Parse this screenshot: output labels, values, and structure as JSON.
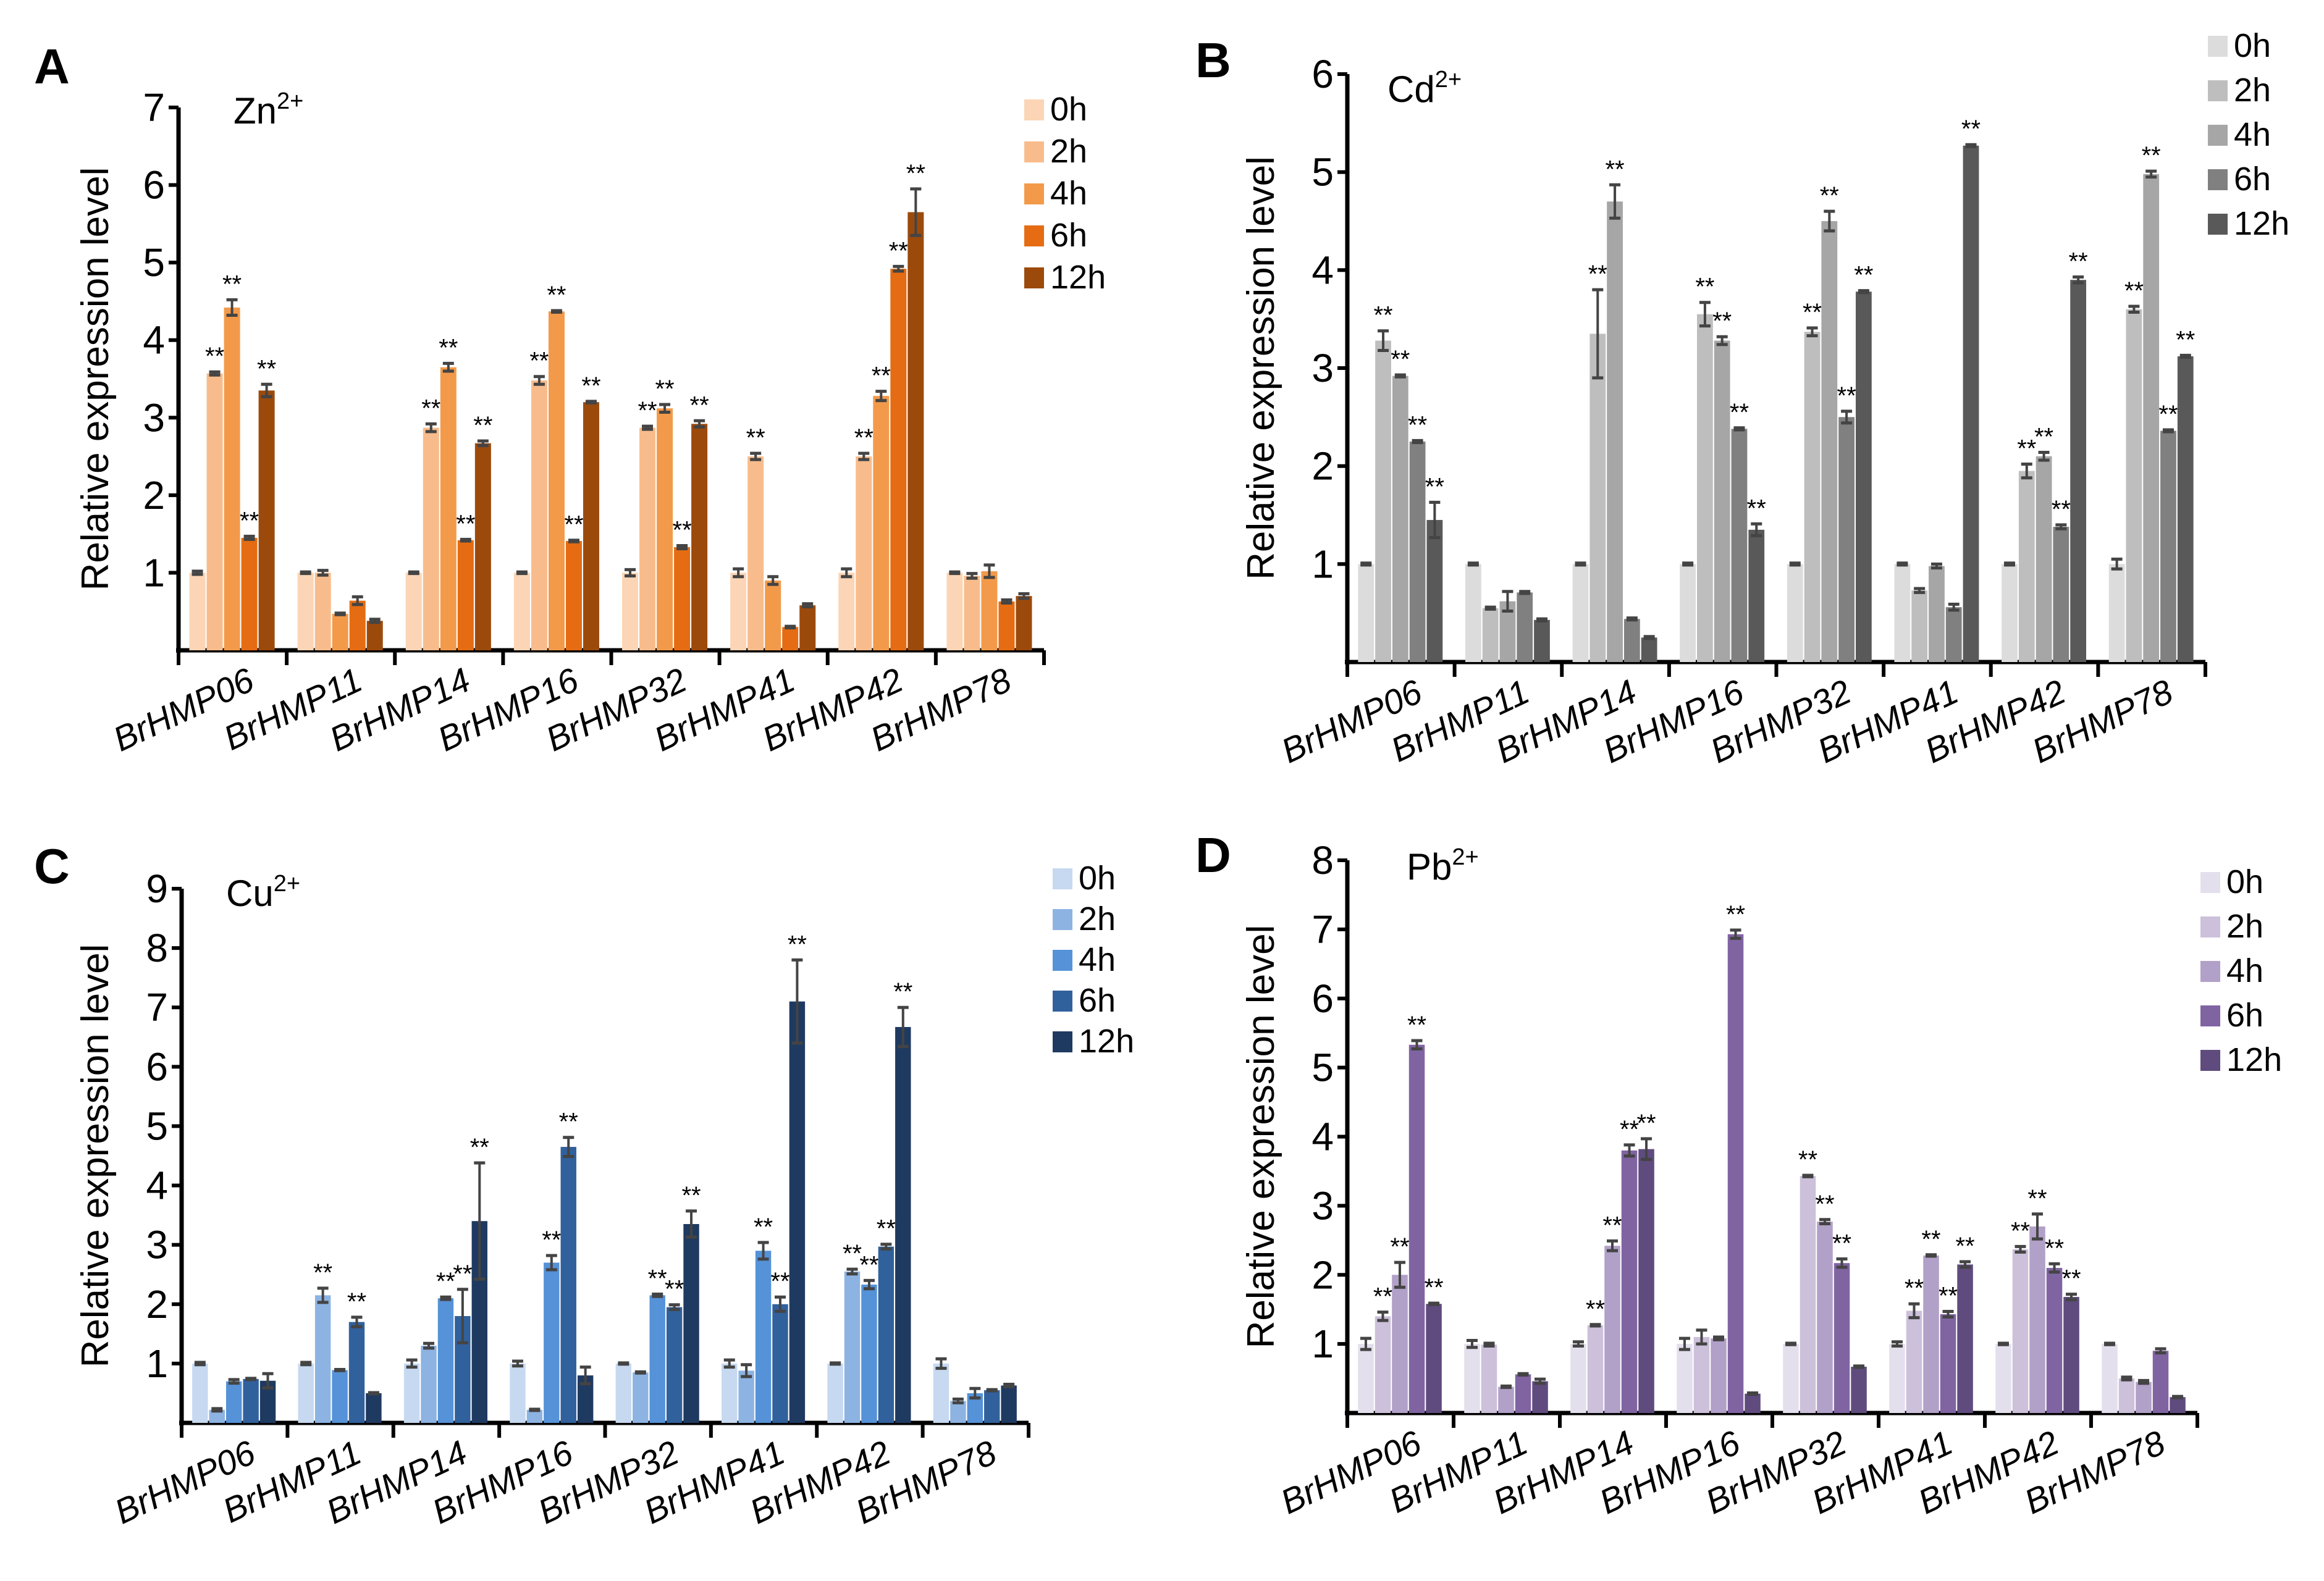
{
  "chart_data": [
    {
      "panel": "A",
      "type": "bar",
      "title": "Zn",
      "title_superscript": "2+",
      "ylabel": "Relative expression level",
      "ylim": [
        0,
        7
      ],
      "yticks": [
        1,
        2,
        3,
        4,
        5,
        6,
        7
      ],
      "legend_position": "top-right",
      "categories": [
        "BrHMP06",
        "BrHMP11",
        "BrHMP14",
        "BrHMP16",
        "BrHMP32",
        "BrHMP41",
        "BrHMP42",
        "BrHMP78"
      ],
      "series_names": [
        "0h",
        "2h",
        "4h",
        "6h",
        "12h"
      ],
      "colors": [
        "#FBD5B5",
        "#F8BC8C",
        "#F39A4A",
        "#E56C12",
        "#9C4A0C"
      ],
      "values": [
        [
          1.0,
          3.57,
          4.42,
          1.45,
          3.35
        ],
        [
          1.0,
          1.0,
          0.47,
          0.64,
          0.38
        ],
        [
          1.0,
          2.87,
          3.65,
          1.42,
          2.67
        ],
        [
          1.0,
          3.48,
          4.37,
          1.41,
          3.2
        ],
        [
          1.0,
          2.87,
          3.12,
          1.33,
          2.92
        ],
        [
          1.0,
          2.5,
          0.9,
          0.3,
          0.58
        ],
        [
          1.0,
          2.5,
          3.28,
          4.92,
          5.65
        ],
        [
          1.0,
          0.96,
          1.02,
          0.63,
          0.7
        ]
      ],
      "errors": [
        [
          0.02,
          0.02,
          0.1,
          0.02,
          0.08
        ],
        [
          0.01,
          0.03,
          0.01,
          0.05,
          0.02
        ],
        [
          0.01,
          0.05,
          0.05,
          0.01,
          0.03
        ],
        [
          0.01,
          0.05,
          0.01,
          0.01,
          0.01
        ],
        [
          0.04,
          0.02,
          0.05,
          0.02,
          0.04
        ],
        [
          0.05,
          0.04,
          0.05,
          0.01,
          0.02
        ],
        [
          0.05,
          0.04,
          0.06,
          0.03,
          0.3
        ],
        [
          0.01,
          0.03,
          0.08,
          0.02,
          0.03
        ]
      ],
      "significance": [
        [
          "",
          "**",
          "**",
          "**",
          "**"
        ],
        [
          "",
          "",
          "",
          "",
          ""
        ],
        [
          "",
          "**",
          "**",
          "**",
          "**"
        ],
        [
          "",
          "**",
          "**",
          "**",
          "**"
        ],
        [
          "",
          "**",
          "**",
          "**",
          "**"
        ],
        [
          "",
          "**",
          "",
          "",
          ""
        ],
        [
          "",
          "**",
          "**",
          "**",
          "**"
        ],
        [
          "",
          "",
          "",
          "",
          ""
        ]
      ]
    },
    {
      "panel": "B",
      "type": "bar",
      "title": "Cd",
      "title_superscript": "2+",
      "ylabel": "Relative expression level",
      "ylim": [
        0,
        6
      ],
      "yticks": [
        1,
        2,
        3,
        4,
        5,
        6
      ],
      "legend_position": "top-right",
      "categories": [
        "BrHMP06",
        "BrHMP11",
        "BrHMP14",
        "BrHMP16",
        "BrHMP32",
        "BrHMP41",
        "BrHMP42",
        "BrHMP78"
      ],
      "series_names": [
        "0h",
        "2h",
        "4h",
        "6h",
        "12h"
      ],
      "colors": [
        "#DCDCDC",
        "#BEBEBE",
        "#A6A6A6",
        "#808080",
        "#595959"
      ],
      "values": [
        [
          1.0,
          3.28,
          2.92,
          2.25,
          1.45
        ],
        [
          1.0,
          0.55,
          0.62,
          0.71,
          0.43
        ],
        [
          1.0,
          3.35,
          4.7,
          0.44,
          0.25
        ],
        [
          1.0,
          3.55,
          3.28,
          2.38,
          1.35
        ],
        [
          1.0,
          3.37,
          4.5,
          2.5,
          3.78
        ],
        [
          1.0,
          0.73,
          0.98,
          0.56,
          5.27
        ],
        [
          1.0,
          1.95,
          2.1,
          1.38,
          3.9
        ],
        [
          1.0,
          3.6,
          4.98,
          2.36,
          3.12
        ]
      ],
      "errors": [
        [
          0.01,
          0.1,
          0.01,
          0.01,
          0.18
        ],
        [
          0.01,
          0.01,
          0.1,
          0.01,
          0.01
        ],
        [
          0.01,
          0.45,
          0.17,
          0.01,
          0.01
        ],
        [
          0.01,
          0.12,
          0.04,
          0.01,
          0.06
        ],
        [
          0.01,
          0.04,
          0.1,
          0.06,
          0.01
        ],
        [
          0.01,
          0.02,
          0.02,
          0.03,
          0.01
        ],
        [
          0.01,
          0.07,
          0.04,
          0.02,
          0.03
        ],
        [
          0.05,
          0.03,
          0.03,
          0.01,
          0.01
        ]
      ],
      "significance": [
        [
          "",
          "**",
          "**",
          "**",
          "**"
        ],
        [
          "",
          "",
          "",
          "",
          ""
        ],
        [
          "",
          "**",
          "**",
          "",
          ""
        ],
        [
          "",
          "**",
          "**",
          "**",
          "**"
        ],
        [
          "",
          "**",
          "**",
          "**",
          "**"
        ],
        [
          "",
          "",
          "",
          "",
          "**"
        ],
        [
          "",
          "**",
          "**",
          "**",
          "**"
        ],
        [
          "",
          "**",
          "**",
          "**",
          "**"
        ]
      ]
    },
    {
      "panel": "C",
      "type": "bar",
      "title": "Cu",
      "title_superscript": "2+",
      "ylabel": "Relative expression level",
      "ylim": [
        0,
        9
      ],
      "yticks": [
        1,
        2,
        3,
        4,
        5,
        6,
        7,
        8,
        9
      ],
      "legend_position": "top-right",
      "categories": [
        "BrHMP06",
        "BrHMP11",
        "BrHMP14",
        "BrHMP16",
        "BrHMP32",
        "BrHMP41",
        "BrHMP42",
        "BrHMP78"
      ],
      "series_names": [
        "0h",
        "2h",
        "4h",
        "6h",
        "12h"
      ],
      "colors": [
        "#C6D9F1",
        "#8DB3E2",
        "#5592D8",
        "#31619C",
        "#1F3A60"
      ],
      "values": [
        [
          1.0,
          0.22,
          0.7,
          0.74,
          0.71
        ],
        [
          1.0,
          2.15,
          0.89,
          1.7,
          0.5
        ],
        [
          1.0,
          1.3,
          2.1,
          1.8,
          3.4
        ],
        [
          1.0,
          0.22,
          2.7,
          4.65,
          0.8
        ],
        [
          1.0,
          0.85,
          2.15,
          1.95,
          3.35
        ],
        [
          1.0,
          0.88,
          2.9,
          2.0,
          7.1
        ],
        [
          1.0,
          2.55,
          2.33,
          2.97,
          6.67
        ],
        [
          1.0,
          0.37,
          0.5,
          0.55,
          0.63
        ]
      ],
      "errors": [
        [
          0.02,
          0.02,
          0.03,
          0.01,
          0.12
        ],
        [
          0.02,
          0.12,
          0.01,
          0.08,
          0.01
        ],
        [
          0.06,
          0.04,
          0.02,
          0.45,
          0.98
        ],
        [
          0.04,
          0.01,
          0.12,
          0.16,
          0.14
        ],
        [
          0.01,
          0.01,
          0.02,
          0.04,
          0.22
        ],
        [
          0.06,
          0.1,
          0.14,
          0.12,
          0.7
        ],
        [
          0.01,
          0.04,
          0.07,
          0.04,
          0.33
        ],
        [
          0.08,
          0.03,
          0.08,
          0.01,
          0.02
        ]
      ],
      "significance": [
        [
          "",
          "",
          "",
          "",
          ""
        ],
        [
          "",
          "**",
          "",
          "**",
          ""
        ],
        [
          "",
          "",
          "**",
          "**",
          "**"
        ],
        [
          "",
          "",
          "**",
          "**",
          ""
        ],
        [
          "",
          "",
          "**",
          "**",
          "**"
        ],
        [
          "",
          "",
          "**",
          "**",
          "**"
        ],
        [
          "",
          "**",
          "**",
          "**",
          "**"
        ],
        [
          "",
          "",
          "",
          "",
          ""
        ]
      ]
    },
    {
      "panel": "D",
      "type": "bar",
      "title": "Pb",
      "title_superscript": "2+",
      "ylabel": "Relative expression level",
      "ylim": [
        0,
        8
      ],
      "yticks": [
        1,
        2,
        3,
        4,
        5,
        6,
        7,
        8
      ],
      "legend_position": "top-right",
      "categories": [
        "BrHMP06",
        "BrHMP11",
        "BrHMP14",
        "BrHMP16",
        "BrHMP32",
        "BrHMP41",
        "BrHMP42",
        "BrHMP78"
      ],
      "series_names": [
        "0h",
        "2h",
        "4h",
        "6h",
        "12h"
      ],
      "colors": [
        "#E4DFEC",
        "#CCC0DA",
        "#B1A0C7",
        "#8064A2",
        "#5F4B7E"
      ],
      "values": [
        [
          1.0,
          1.4,
          2.0,
          5.33,
          1.58
        ],
        [
          1.0,
          0.99,
          0.38,
          0.56,
          0.46
        ],
        [
          1.0,
          1.27,
          2.42,
          3.8,
          3.82
        ],
        [
          1.0,
          1.1,
          1.08,
          6.93,
          0.28
        ],
        [
          1.0,
          3.43,
          2.77,
          2.17,
          0.67
        ],
        [
          1.0,
          1.48,
          2.28,
          1.43,
          2.15
        ],
        [
          1.0,
          2.37,
          2.7,
          2.1,
          1.68
        ],
        [
          1.0,
          0.5,
          0.45,
          0.9,
          0.23
        ]
      ],
      "errors": [
        [
          0.08,
          0.06,
          0.18,
          0.06,
          0.01
        ],
        [
          0.05,
          0.02,
          0.01,
          0.01,
          0.03
        ],
        [
          0.03,
          0.01,
          0.07,
          0.08,
          0.15
        ],
        [
          0.08,
          0.1,
          0.02,
          0.06,
          0.01
        ],
        [
          0.01,
          0.01,
          0.03,
          0.06,
          0.01
        ],
        [
          0.03,
          0.1,
          0.01,
          0.04,
          0.04
        ],
        [
          0.01,
          0.04,
          0.18,
          0.06,
          0.04
        ],
        [
          0.01,
          0.02,
          0.02,
          0.03,
          0.01
        ]
      ],
      "significance": [
        [
          "",
          "**",
          "**",
          "**",
          "**"
        ],
        [
          "",
          "",
          "",
          "",
          ""
        ],
        [
          "",
          "**",
          "**",
          "**",
          "**"
        ],
        [
          "",
          "",
          "",
          "**",
          ""
        ],
        [
          "",
          "**",
          "**",
          "**",
          ""
        ],
        [
          "",
          "**",
          "**",
          "**",
          "**"
        ],
        [
          "",
          "**",
          "**",
          "**",
          "**"
        ],
        [
          "",
          "",
          "",
          "",
          ""
        ]
      ]
    }
  ]
}
